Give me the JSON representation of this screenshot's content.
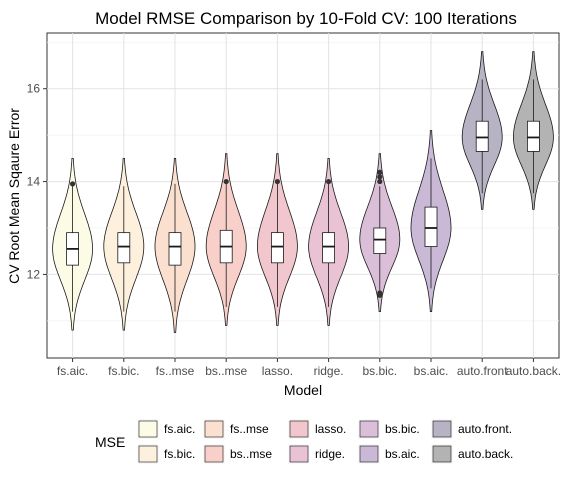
{
  "chart_data": {
    "type": "violin",
    "title": "Model RMSE Comparison by 10-Fold CV: 100 Iterations",
    "xlabel": "Model",
    "ylabel": "CV Root Mean Sqaure Error",
    "ylim": [
      10.2,
      17.2
    ],
    "yticks": [
      12,
      14,
      16
    ],
    "grid": true,
    "legend_title": "MSE",
    "legend_position": "bottom",
    "categories": [
      "fs.aic.",
      "fs.bic.",
      "fs..mse",
      "bs..mse",
      "lasso.",
      "ridge.",
      "bs.bic.",
      "bs.aic.",
      "auto.front",
      "auto.back."
    ],
    "series": [
      {
        "legend": "fs.aic.",
        "color": "#fbfbe6",
        "min": 10.8,
        "max": 14.5,
        "q1": 12.2,
        "median": 12.55,
        "q3": 12.9,
        "whisker_low": 11.2,
        "whisker_high": 13.9,
        "outliers": [
          13.95
        ]
      },
      {
        "legend": "fs.bic.",
        "color": "#fdf0dc",
        "min": 10.8,
        "max": 14.5,
        "q1": 12.25,
        "median": 12.6,
        "q3": 12.9,
        "whisker_low": 11.2,
        "whisker_high": 13.9,
        "outliers": []
      },
      {
        "legend": "fs..mse",
        "color": "#fce0cf",
        "min": 10.75,
        "max": 14.5,
        "q1": 12.2,
        "median": 12.6,
        "q3": 12.9,
        "whisker_low": 11.2,
        "whisker_high": 13.95,
        "outliers": []
      },
      {
        "legend": "bs..mse",
        "color": "#f9d0c9",
        "min": 10.9,
        "max": 14.6,
        "q1": 12.25,
        "median": 12.6,
        "q3": 12.95,
        "whisker_low": 11.3,
        "whisker_high": 13.95,
        "outliers": [
          14.0
        ]
      },
      {
        "legend": "lasso.",
        "color": "#f1c6cd",
        "min": 10.9,
        "max": 14.6,
        "q1": 12.25,
        "median": 12.6,
        "q3": 12.9,
        "whisker_low": 11.3,
        "whisker_high": 13.95,
        "outliers": [
          14.0
        ]
      },
      {
        "legend": "ridge.",
        "color": "#e9c3d4",
        "min": 10.9,
        "max": 14.5,
        "q1": 12.25,
        "median": 12.6,
        "q3": 12.9,
        "whisker_low": 11.3,
        "whisker_high": 13.95,
        "outliers": [
          14.0
        ]
      },
      {
        "legend": "bs.bic.",
        "color": "#dbbfd9",
        "min": 11.2,
        "max": 14.6,
        "q1": 12.45,
        "median": 12.75,
        "q3": 13.0,
        "whisker_low": 11.6,
        "whisker_high": 13.9,
        "outliers": [
          11.55,
          11.6,
          14.0,
          14.1,
          14.2
        ]
      },
      {
        "legend": "bs.aic.",
        "color": "#c9b9d7",
        "min": 11.2,
        "max": 15.1,
        "q1": 12.6,
        "median": 13.0,
        "q3": 13.45,
        "whisker_low": 11.7,
        "whisker_high": 14.5,
        "outliers": []
      },
      {
        "legend": "auto.front.",
        "color": "#b8b3c4",
        "min": 13.4,
        "max": 16.8,
        "q1": 14.65,
        "median": 14.95,
        "q3": 15.3,
        "whisker_low": 13.75,
        "whisker_high": 16.2,
        "outliers": []
      },
      {
        "legend": "auto.back.",
        "color": "#b3b3b3",
        "min": 13.4,
        "max": 16.8,
        "q1": 14.65,
        "median": 14.95,
        "q3": 15.3,
        "whisker_low": 13.75,
        "whisker_high": 16.2,
        "outliers": []
      }
    ]
  }
}
